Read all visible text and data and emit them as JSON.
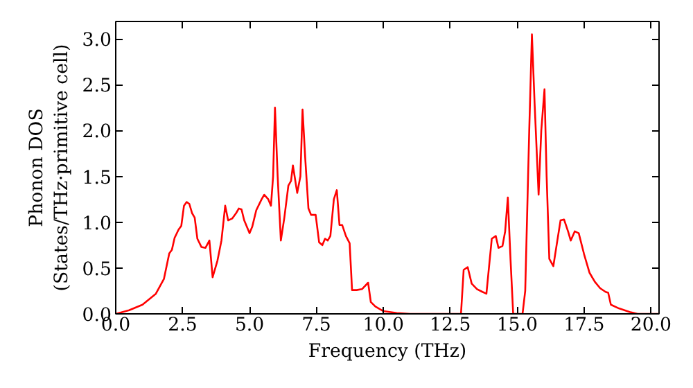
{
  "chart_data": {
    "type": "line",
    "xlabel": "Frequency (THz)",
    "ylabel": "Phonon DOS\n(States/THz·primitive cell)",
    "xlim": [
      0,
      20.3
    ],
    "ylim": [
      0,
      3.19
    ],
    "grid": false,
    "marker": "none",
    "line_style": "solid",
    "xticks": [
      {
        "value": 0,
        "label": "0.0"
      },
      {
        "value": 2.5,
        "label": "2.5"
      },
      {
        "value": 5,
        "label": "5.0"
      },
      {
        "value": 7.5,
        "label": "7.5"
      },
      {
        "value": 10,
        "label": "10.0"
      },
      {
        "value": 12.5,
        "label": "12.5"
      },
      {
        "value": 15,
        "label": "15.0"
      },
      {
        "value": 17.5,
        "label": "17.5"
      },
      {
        "value": 20,
        "label": "20.0"
      }
    ],
    "yticks": [
      {
        "value": 0,
        "label": "0.0"
      },
      {
        "value": 0.5,
        "label": "0.5"
      },
      {
        "value": 1,
        "label": "1.0"
      },
      {
        "value": 1.5,
        "label": "1.5"
      },
      {
        "value": 2,
        "label": "2.0"
      },
      {
        "value": 2.5,
        "label": "2.5"
      },
      {
        "value": 3,
        "label": "3.0"
      }
    ],
    "series": [
      {
        "color": "#ff0000",
        "x": [
          0,
          0.5,
          1.0,
          1.5,
          1.8,
          2.0,
          2.1,
          2.2,
          2.35,
          2.45,
          2.55,
          2.65,
          2.75,
          2.85,
          2.95,
          3.05,
          3.2,
          3.35,
          3.5,
          3.62,
          3.8,
          3.95,
          4.09,
          4.2,
          4.35,
          4.5,
          4.6,
          4.7,
          4.8,
          5.0,
          5.1,
          5.25,
          5.45,
          5.55,
          5.7,
          5.8,
          5.88,
          5.95,
          6.05,
          6.17,
          6.3,
          6.45,
          6.55,
          6.62,
          6.78,
          6.9,
          6.98,
          7.08,
          7.2,
          7.3,
          7.47,
          7.6,
          7.72,
          7.82,
          7.92,
          8.02,
          8.15,
          8.26,
          8.36,
          8.46,
          8.6,
          8.74,
          8.83,
          9.0,
          9.2,
          9.43,
          9.53,
          9.7,
          10.0,
          10.5,
          11.0,
          12.9,
          13.0,
          13.15,
          13.3,
          13.5,
          13.7,
          13.85,
          14.05,
          14.2,
          14.3,
          14.45,
          14.55,
          14.65,
          14.75,
          14.85,
          15.2,
          15.3,
          15.45,
          15.55,
          15.65,
          15.8,
          15.9,
          16.02,
          16.1,
          16.2,
          16.35,
          16.5,
          16.62,
          16.75,
          16.9,
          17.0,
          17.15,
          17.3,
          17.5,
          17.7,
          17.9,
          18.1,
          18.3,
          18.4,
          18.5,
          18.8,
          19.2,
          19.5,
          20.3
        ],
        "values": [
          0,
          0.04,
          0.1,
          0.22,
          0.38,
          0.66,
          0.7,
          0.83,
          0.92,
          0.96,
          1.18,
          1.22,
          1.2,
          1.1,
          1.05,
          0.82,
          0.73,
          0.72,
          0.8,
          0.4,
          0.58,
          0.8,
          1.18,
          1.02,
          1.04,
          1.1,
          1.15,
          1.14,
          1.02,
          0.88,
          0.95,
          1.13,
          1.25,
          1.3,
          1.25,
          1.18,
          1.5,
          2.25,
          1.5,
          0.8,
          1.05,
          1.4,
          1.45,
          1.62,
          1.32,
          1.5,
          2.23,
          1.7,
          1.15,
          1.08,
          1.08,
          0.78,
          0.75,
          0.82,
          0.8,
          0.85,
          1.25,
          1.35,
          0.97,
          0.97,
          0.85,
          0.77,
          0.26,
          0.26,
          0.27,
          0.34,
          0.13,
          0.08,
          0.03,
          0.01,
          0,
          0,
          0.48,
          0.51,
          0.33,
          0.27,
          0.24,
          0.22,
          0.82,
          0.85,
          0.72,
          0.74,
          0.9,
          1.27,
          0.6,
          0,
          0,
          0.25,
          2.0,
          3.05,
          2.3,
          1.3,
          2.0,
          2.45,
          1.5,
          0.6,
          0.52,
          0.8,
          1.02,
          1.03,
          0.9,
          0.8,
          0.9,
          0.88,
          0.65,
          0.45,
          0.35,
          0.28,
          0.24,
          0.23,
          0.1,
          0.06,
          0.02,
          0,
          0
        ]
      }
    ]
  }
}
